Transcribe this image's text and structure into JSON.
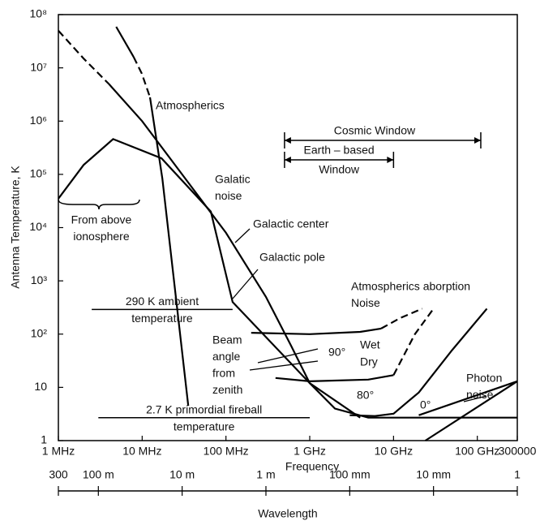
{
  "chart_data": {
    "type": "line",
    "xlabel": "Frequency",
    "ylabel": "Antenna Temperature, K",
    "xlog": true,
    "ylog": true,
    "xlim": [
      1,
      300000
    ],
    "ylim": [
      1,
      100000000
    ],
    "xticks": [
      {
        "value": 1,
        "label": "1 MHz"
      },
      {
        "value": 10,
        "label": "10 MHz"
      },
      {
        "value": 100,
        "label": "100 MHz"
      },
      {
        "value": 1000,
        "label": "1 GHz"
      },
      {
        "value": 10000,
        "label": "10 GHz"
      },
      {
        "value": 100000,
        "label": "100 GHz"
      },
      300000
    ],
    "yticks": [
      1,
      10,
      {
        "value": 100,
        "label": "10²"
      },
      {
        "value": 1000,
        "label": "10³"
      },
      {
        "value": 10000,
        "label": "10⁴"
      },
      {
        "value": 100000,
        "label": "10⁵"
      },
      {
        "value": 1000000,
        "label": "10⁶"
      },
      {
        "value": 10000000,
        "label": "10⁷"
      },
      {
        "value": 100000000,
        "label": "10⁸"
      }
    ],
    "wavelength_axis": {
      "title": "Wavelength",
      "lim": [
        300,
        0.001
      ],
      "ticks": [
        300,
        {
          "value": 100,
          "label": "100 m"
        },
        {
          "value": 10,
          "label": "10 m"
        },
        {
          "value": 1,
          "label": "1 m"
        },
        {
          "value": 0.1,
          "label": "100 mm"
        },
        {
          "value": 0.01,
          "label": "10 mm"
        },
        {
          "value": 0.001,
          "label": "1"
        }
      ]
    },
    "color": "#000000",
    "series": [
      {
        "x": [
          1,
          2,
          4
        ],
        "values": [
          50000000,
          15000000,
          5000000
        ],
        "dash": true
      },
      {
        "x": [
          4,
          10,
          30,
          100,
          300,
          600,
          1000,
          2000,
          5000,
          300000
        ],
        "values": [
          5000000,
          1000000,
          100000,
          8000,
          500,
          60,
          12,
          4,
          2.7,
          2.7
        ],
        "dash": false
      },
      {
        "x": [
          1,
          2,
          4.5,
          17,
          66,
          120,
          1000,
          4000
        ],
        "values": [
          35000,
          150000,
          460000,
          200000,
          20000,
          400,
          12,
          2.7
        ],
        "dash": false
      },
      {
        "x": [
          4.9,
          7.9
        ],
        "values": [
          59000000,
          16000000
        ],
        "dash": false
      },
      {
        "x": [
          7.9,
          9.9,
          12.4
        ],
        "values": [
          16000000,
          7800000,
          2800000
        ],
        "dash": true
      },
      {
        "x": [
          12.4,
          17.4,
          35.5
        ],
        "values": [
          2800000,
          84000,
          4.5
        ],
        "dash": false
      },
      {
        "x": [
          200,
          1000,
          4000,
          7100
        ],
        "values": [
          106,
          100,
          110,
          127
        ],
        "dash": false
      },
      {
        "x": [
          7100,
          12000,
          22000
        ],
        "values": [
          127,
          200,
          300
        ],
        "dash": true
      },
      {
        "x": [
          390,
          1000,
          5000,
          10000
        ],
        "values": [
          15,
          13,
          14,
          17
        ],
        "dash": false
      },
      {
        "x": [
          10000,
          18000,
          30000
        ],
        "values": [
          17,
          100,
          300
        ],
        "dash": true
      },
      {
        "x": [
          3000,
          6000,
          10000,
          20000,
          50000,
          130000
        ],
        "values": [
          3,
          2.9,
          3.2,
          8,
          50,
          300
        ],
        "dash": false
      },
      {
        "x": [
          24000,
          300000
        ],
        "values": [
          1,
          13
        ],
        "dash": false
      },
      {
        "x": [
          20000,
          300000
        ],
        "values": [
          3,
          13
        ],
        "dash": false
      }
    ],
    "hlines": [
      {
        "value": 290,
        "xrange": [
          2.5,
          120
        ],
        "label": [
          "290 K ambient",
          "temperature"
        ]
      },
      {
        "value": 2.7,
        "xrange": [
          3,
          1000
        ],
        "label": [
          "2.7 K primordial fireball",
          "temperature"
        ]
      }
    ],
    "windows": [
      {
        "range": [
          500,
          110000
        ],
        "label": [
          "Cosmic Window"
        ]
      },
      {
        "range": [
          500,
          10000
        ],
        "label": [
          "Earth – based",
          "Window"
        ]
      }
    ],
    "annotations": [
      [
        "Atmospherics"
      ],
      [
        "Galatic",
        "noise"
      ],
      [
        "Galactic center"
      ],
      [
        "Galactic pole"
      ],
      [
        "From above",
        "ionosphere"
      ],
      [
        "Atmospherics aborption",
        "Noise"
      ],
      [
        "Beam",
        "angle",
        "from",
        "zenith"
      ],
      [
        "90°"
      ],
      [
        "80°"
      ],
      [
        "0°"
      ],
      [
        "Wet"
      ],
      [
        "Dry"
      ],
      [
        "Photon",
        "noise"
      ]
    ]
  }
}
